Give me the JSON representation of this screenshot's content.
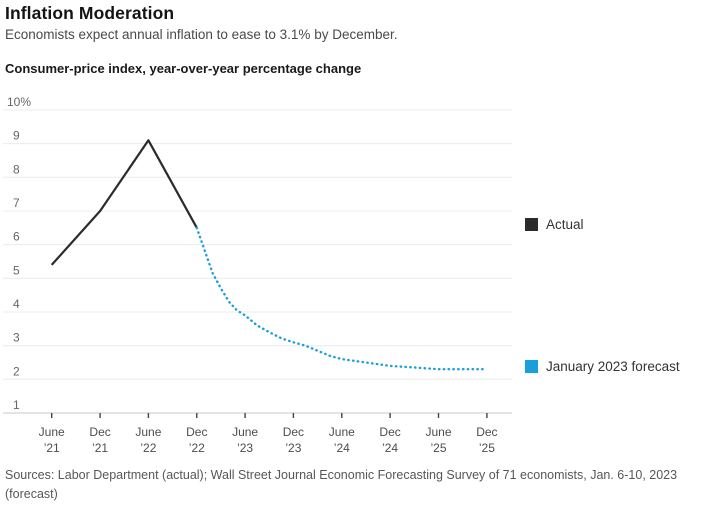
{
  "header": {
    "title": "Inflation Moderation",
    "subtitle": "Economists expect annual inflation to ease to 3.1% by December.",
    "kicker": "Consumer-price index, year-over-year percentage change"
  },
  "legend": [
    {
      "id": "actual",
      "label": "Actual",
      "color": "#2b2b2b"
    },
    {
      "id": "forecast",
      "label": "January 2023 forecast",
      "color": "#1a9fdd"
    }
  ],
  "footer": {
    "sources": "Sources: Labor Department (actual); Wall Street Journal Economic Forecasting Survey of 71 economists, Jan. 6-10, 2023 (forecast)"
  },
  "chart_data": {
    "type": "line",
    "title": "Consumer-price index, year-over-year percentage change",
    "categories": [
      [
        "June",
        "’21"
      ],
      [
        "Dec",
        "’21"
      ],
      [
        "June",
        "’22"
      ],
      [
        "Dec",
        "’22"
      ],
      [
        "June",
        "’23"
      ],
      [
        "Dec",
        "’23"
      ],
      [
        "June",
        "’24"
      ],
      [
        "Dec",
        "’24"
      ],
      [
        "June",
        "’25"
      ],
      [
        "Dec",
        "’25"
      ]
    ],
    "ylim": [
      1,
      10
    ],
    "y_top_label": "10%",
    "grid": true,
    "legend_position": "right",
    "series": [
      {
        "name": "Actual",
        "color": "#2b2b2b",
        "style": "solid",
        "x": [
          0,
          1,
          2,
          3
        ],
        "values": [
          5.4,
          7.0,
          9.1,
          6.5
        ]
      },
      {
        "name": "January 2023 forecast",
        "color": "#1a9fdd",
        "style": "dotted",
        "x": [
          3,
          3.17,
          3.33,
          3.5,
          3.67,
          3.83,
          4,
          4.25,
          4.5,
          4.75,
          5,
          5.25,
          5.5,
          5.75,
          6,
          6.5,
          7,
          7.5,
          8,
          8.5,
          9
        ],
        "values": [
          6.5,
          5.8,
          5.15,
          4.7,
          4.3,
          4.05,
          3.9,
          3.6,
          3.4,
          3.22,
          3.1,
          3.0,
          2.85,
          2.7,
          2.6,
          2.5,
          2.4,
          2.35,
          2.3,
          2.3,
          2.3
        ]
      }
    ]
  }
}
